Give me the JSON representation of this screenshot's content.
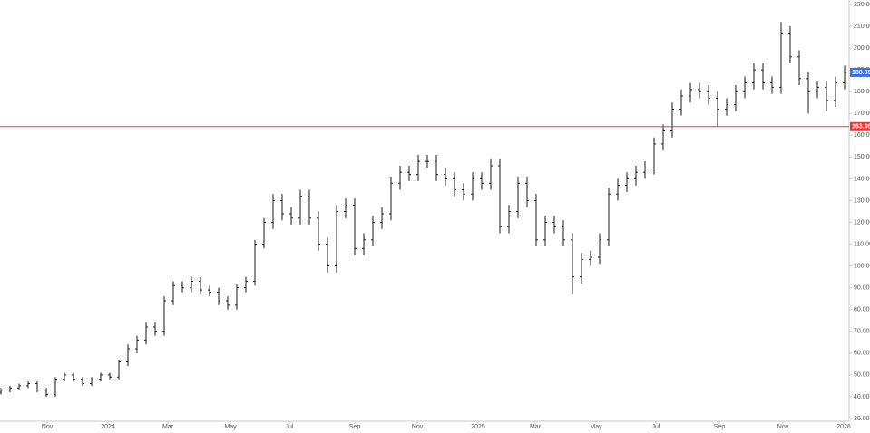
{
  "chart_data": {
    "type": "ohlc",
    "color": "#1a1a1a",
    "xlim": [
      -0.1,
      93.5
    ],
    "ylim": [
      28.75,
      222.08
    ],
    "yticks": [
      {
        "value": 30,
        "label": "30.00"
      },
      {
        "value": 40,
        "label": "40.00"
      },
      {
        "value": 50,
        "label": "50.00"
      },
      {
        "value": 60,
        "label": "60.00"
      },
      {
        "value": 70,
        "label": "70.00"
      },
      {
        "value": 80,
        "label": "80.00"
      },
      {
        "value": 90,
        "label": "90.00"
      },
      {
        "value": 100,
        "label": "100.00"
      },
      {
        "value": 110,
        "label": "110.00"
      },
      {
        "value": 120,
        "label": "120.00"
      },
      {
        "value": 130,
        "label": "130.00"
      },
      {
        "value": 140,
        "label": "140.00"
      },
      {
        "value": 150,
        "label": "150.00"
      },
      {
        "value": 160,
        "label": "160.00"
      },
      {
        "value": 170,
        "label": "170.00"
      },
      {
        "value": 180,
        "label": "180.00"
      },
      {
        "value": 190,
        "label": "190.00"
      },
      {
        "value": 200,
        "label": "200.00"
      },
      {
        "value": 210,
        "label": "210.00"
      },
      {
        "value": 220,
        "label": "220.00"
      }
    ],
    "xticks": [
      {
        "value": 5.1,
        "label": "Nov"
      },
      {
        "value": 11.8,
        "label": "2024"
      },
      {
        "value": 18.4,
        "label": "Mar"
      },
      {
        "value": 25.3,
        "label": "May"
      },
      {
        "value": 31.8,
        "label": "Jul"
      },
      {
        "value": 39,
        "label": "Sep"
      },
      {
        "value": 45.9,
        "label": "Nov"
      },
      {
        "value": 52.6,
        "label": "2025"
      },
      {
        "value": 58.9,
        "label": "Mar"
      },
      {
        "value": 65.6,
        "label": "May"
      },
      {
        "value": 72.2,
        "label": "Jul"
      },
      {
        "value": 79.2,
        "label": "Sep"
      },
      {
        "value": 86.2,
        "label": "Nov"
      },
      {
        "value": 92.9,
        "label": "2026"
      }
    ],
    "open": [
      42,
      43,
      44,
      45,
      46,
      43,
      41,
      48,
      50,
      48,
      46,
      48,
      50,
      49,
      56,
      62,
      66,
      72,
      70,
      84,
      91,
      90,
      93,
      89,
      88,
      84,
      82,
      90,
      93,
      110,
      120,
      130,
      124,
      122,
      132,
      122,
      110,
      100,
      125,
      128,
      108,
      112,
      120,
      124,
      138,
      143,
      142,
      148,
      148,
      142,
      140,
      135,
      133,
      140,
      138,
      146,
      118,
      125,
      138,
      130,
      112,
      120,
      118,
      112,
      95,
      103,
      104,
      112,
      133,
      137,
      140,
      143,
      145,
      156,
      162,
      172,
      178,
      181,
      180,
      177,
      172,
      174,
      180,
      184,
      190,
      184,
      182,
      207,
      196,
      186,
      180,
      182,
      176,
      184
    ],
    "high": [
      44,
      45,
      46,
      47,
      47,
      44,
      49,
      51,
      51,
      49,
      49,
      51,
      51,
      57,
      64,
      68,
      74,
      74,
      86,
      93,
      93,
      95,
      95,
      91,
      90,
      86,
      92,
      95,
      112,
      122,
      133,
      133,
      127,
      135,
      135,
      125,
      113,
      128,
      131,
      131,
      115,
      123,
      127,
      141,
      146,
      146,
      151,
      151,
      151,
      145,
      143,
      138,
      143,
      143,
      149,
      149,
      128,
      141,
      141,
      133,
      123,
      123,
      121,
      115,
      106,
      107,
      115,
      136,
      140,
      143,
      146,
      148,
      159,
      165,
      175,
      181,
      184,
      184,
      183,
      180,
      177,
      183,
      187,
      193,
      193,
      187,
      212,
      210,
      199,
      189,
      185,
      185,
      187,
      192
    ],
    "low": [
      41,
      42,
      43,
      44,
      42,
      40,
      40,
      47,
      47,
      45,
      45,
      47,
      48,
      48,
      54,
      60,
      64,
      68,
      68,
      82,
      88,
      88,
      87,
      86,
      82,
      80,
      80,
      88,
      91,
      108,
      117,
      121,
      119,
      119,
      119,
      107,
      97,
      97,
      122,
      105,
      105,
      109,
      117,
      121,
      135,
      139,
      139,
      145,
      139,
      137,
      132,
      130,
      130,
      135,
      135,
      115,
      115,
      122,
      127,
      109,
      109,
      115,
      109,
      87,
      92,
      100,
      101,
      109,
      130,
      134,
      137,
      140,
      142,
      153,
      159,
      169,
      175,
      177,
      174,
      164,
      169,
      171,
      177,
      181,
      181,
      179,
      179,
      193,
      183,
      170,
      177,
      171,
      173,
      181
    ],
    "close": [
      43,
      44,
      45,
      46,
      43,
      41,
      48,
      50,
      48,
      46,
      48,
      50,
      49,
      56,
      62,
      66,
      72,
      70,
      84,
      91,
      90,
      93,
      89,
      88,
      84,
      82,
      90,
      93,
      110,
      120,
      130,
      124,
      122,
      132,
      122,
      110,
      100,
      125,
      128,
      108,
      112,
      120,
      124,
      138,
      143,
      142,
      148,
      148,
      142,
      140,
      135,
      133,
      140,
      138,
      146,
      118,
      125,
      138,
      130,
      112,
      120,
      118,
      112,
      95,
      103,
      104,
      112,
      133,
      137,
      140,
      143,
      145,
      156,
      162,
      172,
      178,
      181,
      180,
      177,
      172,
      174,
      180,
      184,
      190,
      184,
      182,
      207,
      196,
      186,
      180,
      182,
      176,
      184,
      188.85
    ],
    "hline": {
      "value": 163.96,
      "color": "#e53935"
    },
    "last_color": "#3f6fd6"
  }
}
